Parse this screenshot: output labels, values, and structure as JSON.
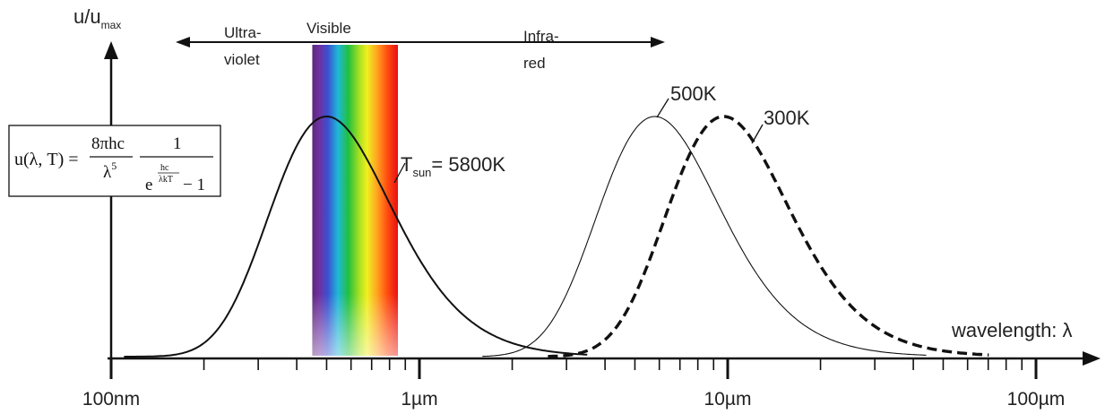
{
  "chart_data": {
    "type": "line",
    "x_scale": "log",
    "xlim": [
      "100nm",
      "100µm"
    ],
    "ylim": [
      0,
      1
    ],
    "ylabel": {
      "main": "u/u",
      "sub": "max"
    },
    "xlabel": "wavelength: λ",
    "x_ticks": [
      {
        "value_m": 1e-07,
        "label": "100nm"
      },
      {
        "value_m": 1e-06,
        "label": "1µm"
      },
      {
        "value_m": 1e-05,
        "label": "10µm"
      },
      {
        "value_m": 0.0001,
        "label": "100µm"
      }
    ],
    "series": [
      {
        "name": "T_sun = 5800K",
        "label_main": "T",
        "label_sub": "sun",
        "label_tail": "= 5800K",
        "temperature_K": 5800,
        "peak_um": 0.5,
        "style": "solid-medium"
      },
      {
        "name": "500K",
        "temperature_K": 500,
        "peak_um": 5.8,
        "style": "solid-thin"
      },
      {
        "name": "300K",
        "temperature_K": 300,
        "peak_um": 9.7,
        "style": "dashed-thick"
      }
    ],
    "bands": {
      "uv": {
        "line1": "Ultra-",
        "line2": "violet"
      },
      "visible": {
        "label": "Visible",
        "from_um": 0.38,
        "to_um": 0.75
      },
      "ir": {
        "line1": "Infra-",
        "line2": "red"
      }
    },
    "formula": {
      "lhs": "u(λ, T) =",
      "num1": "8πhc",
      "den1": "λ",
      "den1_exp": "5",
      "num2": "1",
      "den2_base": "e",
      "exp_num": "hc",
      "exp_den": "λkT",
      "den2_tail": "− 1"
    }
  }
}
